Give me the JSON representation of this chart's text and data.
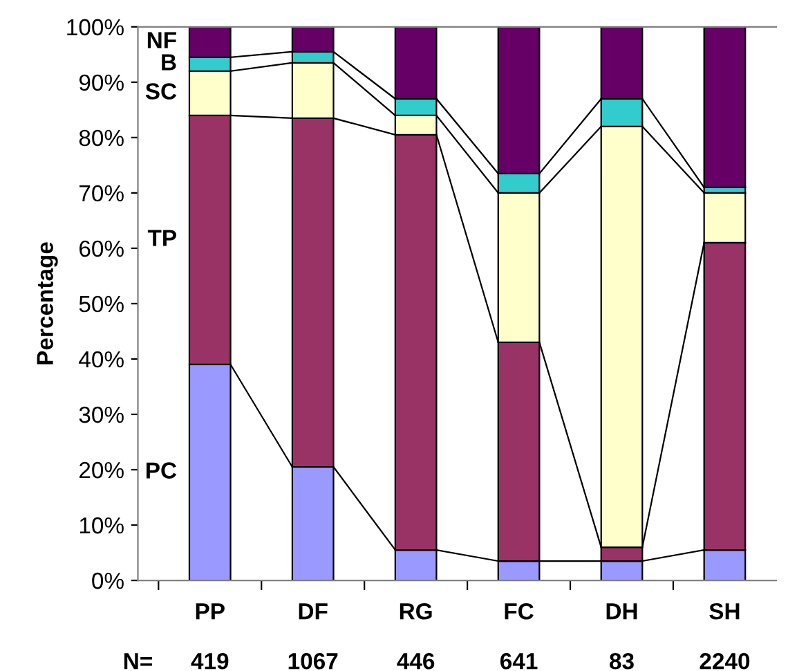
{
  "chart_data": {
    "type": "bar",
    "stacked": true,
    "ylabel": "Percentage",
    "categories": [
      "PP",
      "DF",
      "RG",
      "FC",
      "DH",
      "SH"
    ],
    "series": [
      {
        "name": "PC",
        "color": "#9999ff",
        "values": [
          39,
          20.5,
          5.5,
          3.5,
          3.5,
          5.5
        ]
      },
      {
        "name": "TP",
        "color": "#993366",
        "values": [
          45,
          63,
          75,
          39.5,
          2.5,
          55.5
        ]
      },
      {
        "name": "SC",
        "color": "#ffffcc",
        "values": [
          8,
          10,
          3.5,
          27,
          76,
          9
        ]
      },
      {
        "name": "B",
        "color": "#33cccc",
        "values": [
          2.5,
          2,
          3,
          3.5,
          5,
          1
        ]
      },
      {
        "name": "NF",
        "color": "#660066",
        "values": [
          5.5,
          4.5,
          13,
          26.5,
          13,
          29
        ]
      }
    ],
    "ylim": [
      0,
      100
    ],
    "yticks": [
      {
        "value": 0,
        "label": "0%"
      },
      {
        "value": 10,
        "label": "10%"
      },
      {
        "value": 20,
        "label": "20%"
      },
      {
        "value": 30,
        "label": "30%"
      },
      {
        "value": 40,
        "label": "40%"
      },
      {
        "value": 50,
        "label": "50%"
      },
      {
        "value": 60,
        "label": "60%"
      },
      {
        "value": 70,
        "label": "70%"
      },
      {
        "value": 80,
        "label": "80%"
      },
      {
        "value": 90,
        "label": "90%"
      },
      {
        "value": 100,
        "label": "100%"
      }
    ],
    "annotations": [
      "N=",
      "419",
      "1067",
      "446",
      "641",
      "83",
      "2240"
    ],
    "grid": false,
    "legend": "left"
  }
}
